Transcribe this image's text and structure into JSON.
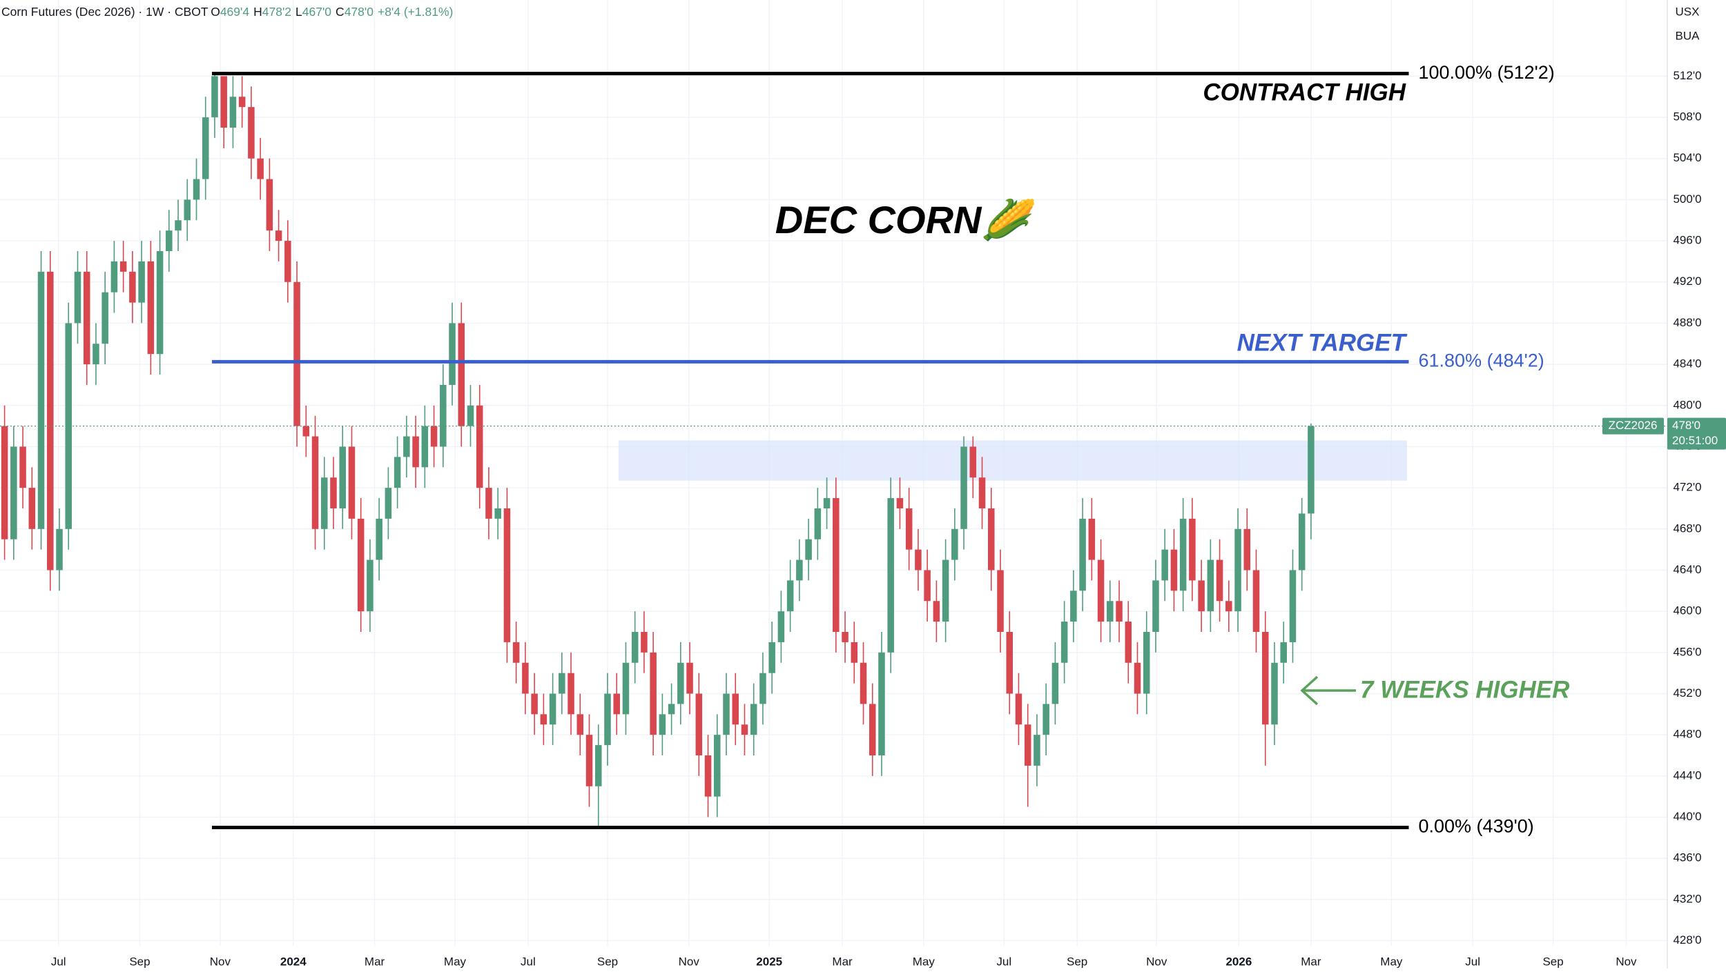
{
  "chart_data": {
    "type": "candlestick",
    "header": {
      "instrument": "Corn Futures (Dec 2026) · 1W · CBOT",
      "o_label": "O",
      "o": "469'4",
      "h_label": "H",
      "h": "478'2",
      "l_label": "L",
      "l": "467'0",
      "c_label": "C",
      "c": "478'0",
      "change": "+8'4 (+1.81%)"
    },
    "currency": "USX",
    "unit": "BUA",
    "title": "DEC CORN🌽",
    "annotations": {
      "contract_high": "CONTRACT HIGH",
      "next_target": "NEXT TARGET",
      "weeks_higher": "7 WEEKS HIGHER"
    },
    "price_tag": {
      "symbol": "ZCZ2026",
      "price": "478'0",
      "countdown": "20:51:00"
    },
    "up_color": "#4f9c7e",
    "down_color": "#d9474e",
    "ohlc": {
      "open": [
        478,
        467,
        476,
        472,
        468,
        493,
        464,
        468,
        488,
        493,
        484,
        486,
        491,
        494,
        493,
        490,
        494,
        485,
        495,
        497,
        498,
        500,
        502,
        508,
        512,
        507,
        510,
        509,
        504,
        502,
        497,
        496,
        492,
        478,
        477,
        468,
        473,
        470,
        476,
        469,
        460,
        465,
        469,
        472,
        475,
        477,
        474,
        478,
        476,
        482,
        488,
        478,
        480,
        472,
        469,
        470,
        457,
        455,
        452,
        450,
        449,
        452,
        454,
        450,
        448,
        443,
        447,
        452,
        450,
        455,
        458,
        456,
        448,
        450,
        451,
        455,
        452,
        446,
        442,
        448,
        452,
        449,
        448,
        451,
        454,
        457,
        460,
        463,
        465,
        467,
        470,
        471,
        458,
        457,
        455,
        451,
        446,
        456,
        471,
        470,
        466,
        464,
        461,
        459,
        465,
        468,
        476,
        473,
        470,
        464,
        458,
        452,
        449,
        445,
        448,
        451,
        455,
        459,
        462,
        469,
        465,
        459,
        461,
        459,
        455,
        452,
        458,
        463,
        466,
        462,
        469,
        463,
        460,
        465,
        461,
        460,
        468,
        464,
        458,
        449,
        455,
        457,
        464,
        469.5
      ],
      "high": [
        480,
        478,
        478,
        474,
        495,
        495,
        470,
        490,
        495,
        495,
        488,
        493,
        496,
        496,
        495,
        496,
        496,
        497,
        499,
        500,
        502,
        504,
        510,
        512.25,
        511,
        512,
        512,
        511,
        506,
        504,
        499,
        498,
        494,
        480,
        479,
        475,
        475,
        478,
        478,
        471,
        467,
        471,
        474,
        477,
        479,
        479,
        480,
        480,
        484,
        490,
        490,
        482,
        482,
        474,
        472,
        472,
        459,
        457,
        454,
        452,
        454,
        456,
        456,
        452,
        450,
        449,
        454,
        454,
        457,
        460,
        460,
        458,
        452,
        453,
        457,
        457,
        454,
        448,
        450,
        454,
        454,
        451,
        453,
        456,
        459,
        462,
        465,
        467,
        469,
        472,
        473,
        473,
        460,
        459,
        457,
        453,
        458,
        473,
        473,
        472,
        468,
        466,
        463,
        467,
        470,
        477,
        477,
        475,
        472,
        466,
        460,
        454,
        451,
        450,
        453,
        457,
        461,
        464,
        471,
        471,
        467,
        463,
        463,
        461,
        457,
        460,
        465,
        468,
        468,
        471,
        471,
        465,
        467,
        467,
        463,
        470,
        470,
        466,
        460,
        457,
        459,
        466,
        471,
        478.25
      ],
      "low": [
        465,
        465,
        470,
        466,
        466,
        462,
        462,
        466,
        486,
        482,
        482,
        484,
        489,
        491,
        488,
        488,
        483,
        483,
        493,
        495,
        496,
        498,
        500,
        506,
        505,
        505,
        507,
        502,
        500,
        495,
        494,
        490,
        476,
        475,
        466,
        466,
        468,
        468,
        467,
        458,
        458,
        463,
        467,
        470,
        473,
        472,
        472,
        474,
        474,
        480,
        476,
        476,
        470,
        467,
        467,
        455,
        453,
        450,
        448,
        447,
        447,
        450,
        448,
        446,
        441,
        439,
        445,
        448,
        448,
        453,
        454,
        446,
        446,
        448,
        449,
        450,
        444,
        440,
        440,
        446,
        447,
        446,
        446,
        449,
        452,
        455,
        458,
        461,
        463,
        465,
        468,
        456,
        455,
        453,
        449,
        444,
        444,
        454,
        468,
        464,
        462,
        459,
        457,
        457,
        463,
        466,
        471,
        468,
        462,
        456,
        450,
        447,
        441,
        443,
        446,
        449,
        453,
        457,
        460,
        463,
        457,
        457,
        457,
        453,
        450,
        450,
        456,
        461,
        460,
        460,
        461,
        458,
        458,
        459,
        458,
        458,
        462,
        456,
        445,
        447,
        453,
        455,
        462,
        467
      ],
      "close": [
        467,
        476,
        472,
        468,
        493,
        464,
        468,
        488,
        493,
        484,
        486,
        491,
        494,
        493,
        490,
        494,
        485,
        495,
        497,
        498,
        500,
        502,
        508,
        512,
        507,
        510,
        509,
        504,
        502,
        497,
        496,
        492,
        478,
        477,
        468,
        473,
        470,
        476,
        469,
        460,
        465,
        469,
        472,
        475,
        477,
        474,
        478,
        476,
        482,
        488,
        478,
        480,
        472,
        469,
        470,
        457,
        455,
        452,
        450,
        449,
        452,
        454,
        450,
        448,
        443,
        447,
        452,
        450,
        455,
        458,
        456,
        448,
        450,
        451,
        455,
        452,
        446,
        442,
        448,
        452,
        449,
        448,
        451,
        454,
        457,
        460,
        463,
        465,
        467,
        470,
        471,
        458,
        457,
        455,
        451,
        446,
        456,
        471,
        470,
        466,
        464,
        461,
        459,
        465,
        468,
        476,
        473,
        470,
        464,
        458,
        452,
        449,
        445,
        448,
        451,
        455,
        459,
        462,
        469,
        465,
        459,
        461,
        459,
        455,
        452,
        458,
        463,
        466,
        462,
        469,
        463,
        460,
        465,
        461,
        460,
        468,
        464,
        458,
        449,
        455,
        457,
        464,
        469.5,
        478
      ]
    },
    "levels": [
      {
        "value": 512.25,
        "label": "100.00% (512'2)",
        "color": "#000000",
        "x": [
          22.7,
          153.7
        ]
      },
      {
        "value": 484.25,
        "label": "61.80% (484'2)",
        "color": "#3a5fcd",
        "x": [
          22.7,
          153.7
        ]
      },
      {
        "value": 439,
        "label": "0.00% (439'0)",
        "color": "#000000",
        "x": [
          22.7,
          153.7
        ]
      }
    ],
    "zones": [
      {
        "x": [
          67.2,
          153.5
        ],
        "y": [
          472.7,
          476.6
        ],
        "color": "#dce6fb"
      }
    ],
    "xlim": [
      -0.5,
      182
    ],
    "ylim": [
      427.5,
      519.4
    ],
    "xticks": [
      {
        "value": 5.9,
        "label": "Jul"
      },
      {
        "value": 14.8,
        "label": "Sep"
      },
      {
        "value": 23.6,
        "label": "Nov"
      },
      {
        "value": 31.6,
        "label": "2024"
      },
      {
        "value": 40.5,
        "label": "Mar"
      },
      {
        "value": 49.3,
        "label": "May"
      },
      {
        "value": 57.3,
        "label": "Jul"
      },
      {
        "value": 66,
        "label": "Sep"
      },
      {
        "value": 74.9,
        "label": "Nov"
      },
      {
        "value": 83.7,
        "label": "2025"
      },
      {
        "value": 91.7,
        "label": "Mar"
      },
      {
        "value": 100.6,
        "label": "May"
      },
      {
        "value": 109.4,
        "label": "Jul"
      },
      {
        "value": 117.4,
        "label": "Sep"
      },
      {
        "value": 126.1,
        "label": "Nov"
      },
      {
        "value": 135.1,
        "label": "2026"
      },
      {
        "value": 143,
        "label": "Mar"
      },
      {
        "value": 151.8,
        "label": "May"
      },
      {
        "value": 160.7,
        "label": "Jul"
      },
      {
        "value": 169.5,
        "label": "Sep"
      },
      {
        "value": 177.5,
        "label": "Nov"
      }
    ],
    "yticks": [
      {
        "value": 428,
        "label": "428'0"
      },
      {
        "value": 432,
        "label": "432'0"
      },
      {
        "value": 436,
        "label": "436'0"
      },
      {
        "value": 440,
        "label": "440'0"
      },
      {
        "value": 444,
        "label": "444'0"
      },
      {
        "value": 448,
        "label": "448'0"
      },
      {
        "value": 452,
        "label": "452'0"
      },
      {
        "value": 456,
        "label": "456'0"
      },
      {
        "value": 460,
        "label": "460'0"
      },
      {
        "value": 464,
        "label": "464'0"
      },
      {
        "value": 468,
        "label": "468'0"
      },
      {
        "value": 472,
        "label": "472'0"
      },
      {
        "value": 476,
        "label": "476'0"
      },
      {
        "value": 480,
        "label": "480'0"
      },
      {
        "value": 484,
        "label": "484'0"
      },
      {
        "value": 488,
        "label": "488'0"
      },
      {
        "value": 492,
        "label": "492'0"
      },
      {
        "value": 496,
        "label": "496'0"
      },
      {
        "value": 500,
        "label": "500'0"
      },
      {
        "value": 504,
        "label": "504'0"
      },
      {
        "value": 508,
        "label": "508'0"
      },
      {
        "value": 512,
        "label": "512'0"
      }
    ],
    "grid": true
  }
}
